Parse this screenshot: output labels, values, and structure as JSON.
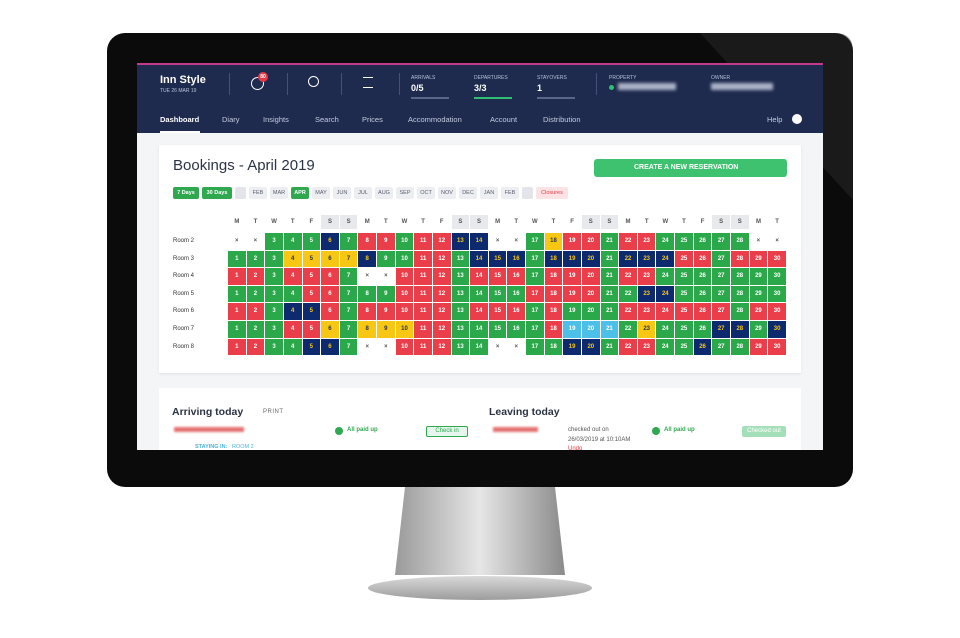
{
  "header": {
    "brand": "Inn Style",
    "date": "TUE 26 MAR 19",
    "notifications": "80",
    "stats": [
      {
        "label": "ARRIVALS",
        "value": "0/5"
      },
      {
        "label": "DEPARTURES",
        "value": "3/3"
      },
      {
        "label": "STAYOVERS",
        "value": "1"
      }
    ],
    "property_label": "PROPERTY",
    "owner_label": "OWNER"
  },
  "nav": {
    "items": [
      "Dashboard",
      "Diary",
      "Insights",
      "Search",
      "Prices",
      "Accommodation",
      "Account",
      "Distribution"
    ],
    "help": "Help"
  },
  "bookings": {
    "title": "Bookings - April 2019",
    "create_button": "CREATE A NEW RESERVATION",
    "ranges": [
      "7 Days",
      "30 Days"
    ],
    "months": [
      "FEB",
      "MAR",
      "APR",
      "MAY",
      "JUN",
      "JUL",
      "AUG",
      "SEP",
      "OCT",
      "NOV",
      "DEC",
      "JAN",
      "FEB"
    ],
    "active_month": 2,
    "closures": "Closures",
    "weekdays": [
      "M",
      "T",
      "W",
      "T",
      "F",
      "S",
      "S",
      "M",
      "T",
      "W",
      "T",
      "F",
      "S",
      "S",
      "M",
      "T",
      "W",
      "T",
      "F",
      "S",
      "S",
      "M",
      "T",
      "W",
      "T",
      "F",
      "S",
      "S",
      "M",
      "T"
    ],
    "rooms": [
      {
        "name": "Room 2",
        "status": "xxgggbgrrgrrbbxxgyrrgrrgggggxx",
        "cells": [
          "×",
          "×",
          "3",
          "4",
          "5",
          "6",
          "7",
          "8",
          "9",
          "10",
          "11",
          "12",
          "13",
          "14",
          "×",
          "×",
          "17",
          "18",
          "19",
          "20",
          "21",
          "22",
          "23",
          "24",
          "25",
          "26",
          "27",
          "28",
          "×",
          "×"
        ]
      },
      {
        "name": "Room 3",
        "status": "gggyyyybggrrgbbbgbbbgbbbrrgrrr",
        "cells": [
          "1",
          "2",
          "3",
          "4",
          "5",
          "6",
          "7",
          "8",
          "9",
          "10",
          "11",
          "12",
          "13",
          "14",
          "15",
          "16",
          "17",
          "18",
          "19",
          "20",
          "21",
          "22",
          "23",
          "24",
          "25",
          "26",
          "27",
          "28",
          "29",
          "30"
        ]
      },
      {
        "name": "Room 4",
        "status": "rrgrrrgxxrrrgrrrgrrrgrrggggggg",
        "cells": [
          "1",
          "2",
          "3",
          "4",
          "5",
          "6",
          "7",
          "×",
          "×",
          "10",
          "11",
          "12",
          "13",
          "14",
          "15",
          "16",
          "17",
          "18",
          "19",
          "20",
          "21",
          "22",
          "23",
          "24",
          "25",
          "26",
          "27",
          "28",
          "29",
          "30"
        ]
      },
      {
        "name": "Room 5",
        "status": "ggggrrgggrrrggggrrrrggbbgggggg",
        "cells": [
          "1",
          "2",
          "3",
          "4",
          "5",
          "6",
          "7",
          "8",
          "9",
          "10",
          "11",
          "12",
          "13",
          "14",
          "15",
          "16",
          "17",
          "18",
          "19",
          "20",
          "21",
          "22",
          "23",
          "24",
          "25",
          "26",
          "27",
          "28",
          "29",
          "30"
        ]
      },
      {
        "name": "Room 6",
        "status": "rrgbbrgrrrrrgrrrgrgggrrrrrrgrr",
        "cells": [
          "1",
          "2",
          "3",
          "4",
          "5",
          "6",
          "7",
          "8",
          "9",
          "10",
          "11",
          "12",
          "13",
          "14",
          "15",
          "16",
          "17",
          "18",
          "19",
          "20",
          "21",
          "22",
          "23",
          "24",
          "25",
          "26",
          "27",
          "28",
          "29",
          "30"
        ]
      },
      {
        "name": "Room 7",
        "status": "gggrrygyyyrrgggggrcccgygggbbgb",
        "cells": [
          "1",
          "2",
          "3",
          "4",
          "5",
          "6",
          "7",
          "8",
          "9",
          "10",
          "11",
          "12",
          "13",
          "14",
          "15",
          "16",
          "17",
          "18",
          "19",
          "20",
          "21",
          "22",
          "23",
          "24",
          "25",
          "26",
          "27",
          "28",
          "29",
          "30"
        ]
      },
      {
        "name": "Room 8",
        "status": "rrggbbgxxrrrggxxggbbgrrggbggrr",
        "cells": [
          "1",
          "2",
          "3",
          "4",
          "5",
          "6",
          "7",
          "×",
          "×",
          "10",
          "11",
          "12",
          "13",
          "14",
          "×",
          "×",
          "17",
          "18",
          "19",
          "20",
          "21",
          "22",
          "23",
          "24",
          "25",
          "26",
          "27",
          "28",
          "29",
          "30"
        ]
      }
    ]
  },
  "arriving": {
    "title": "Arriving today",
    "print": "PRINT",
    "payment": "All paid up",
    "button": "Check in",
    "staying": "STAYING IN:",
    "staying_room": "ROOM 2"
  },
  "leaving": {
    "title": "Leaving today",
    "checked_out_on": "checked out on",
    "checked_out_at": "26/03/2019 at 10:10AM",
    "undo": "Undo",
    "payment": "All paid up",
    "button": "Checked out"
  }
}
